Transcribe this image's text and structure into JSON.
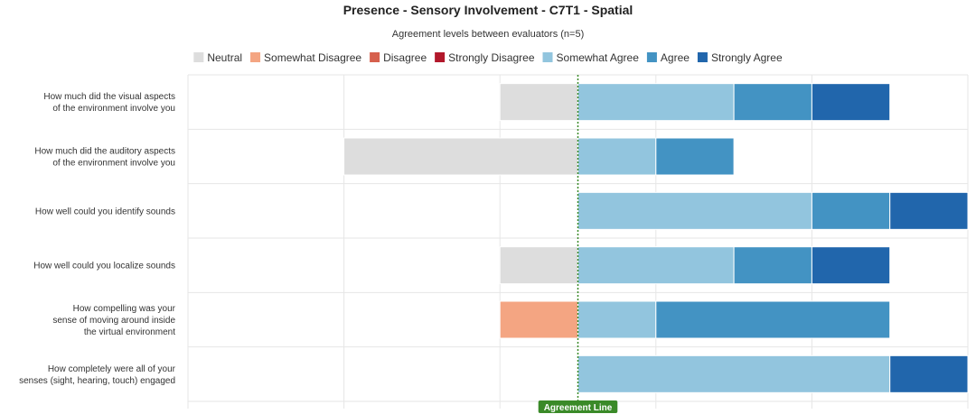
{
  "chart_data": {
    "type": "bar",
    "orientation": "horizontal-diverging",
    "title": "Presence - Sensory Involvement - C7T1 - Spatial",
    "subtitle": "Agreement levels between evaluators (n=5)",
    "legend": {
      "placement": "top-center",
      "entries": [
        {
          "name": "Neutral",
          "color": "#dddddd"
        },
        {
          "name": "Somewhat Disagree",
          "color": "#f4a582"
        },
        {
          "name": "Disagree",
          "color": "#d6604d"
        },
        {
          "name": "Strongly Disagree",
          "color": "#b2182b"
        },
        {
          "name": "Somewhat Agree",
          "color": "#92c5de"
        },
        {
          "name": "Agree",
          "color": "#4393c3"
        },
        {
          "name": "Strongly Agree",
          "color": "#2166ac"
        }
      ]
    },
    "agreement_line_label": "Agreement Line",
    "agreement_line_color": "#3a8a28",
    "xlim": [
      -5,
      5
    ],
    "grid": true,
    "categories": [
      [
        "How much did the visual aspects",
        "of the environment involve you"
      ],
      [
        "How much did the auditory aspects",
        "of the environment involve you"
      ],
      [
        "How well could you identify sounds"
      ],
      [
        "How well could you localize sounds"
      ],
      [
        "How compelling was your",
        "sense of moving around inside",
        "the virtual environment"
      ],
      [
        "How completely were all of your",
        "senses (sight, hearing, touch) engaged"
      ]
    ],
    "series": [
      {
        "name": "Neutral",
        "values": [
          1,
          3,
          0,
          1,
          0,
          0
        ]
      },
      {
        "name": "Somewhat Disagree",
        "values": [
          0,
          0,
          0,
          0,
          1,
          0
        ]
      },
      {
        "name": "Disagree",
        "values": [
          0,
          0,
          0,
          0,
          0,
          0
        ]
      },
      {
        "name": "Strongly Disagree",
        "values": [
          0,
          0,
          0,
          0,
          0,
          0
        ]
      },
      {
        "name": "Somewhat Agree",
        "values": [
          2,
          1,
          3,
          2,
          1,
          4
        ]
      },
      {
        "name": "Agree",
        "values": [
          1,
          1,
          1,
          1,
          3,
          0
        ]
      },
      {
        "name": "Strongly Agree",
        "values": [
          1,
          0,
          1,
          1,
          0,
          1
        ]
      }
    ]
  }
}
